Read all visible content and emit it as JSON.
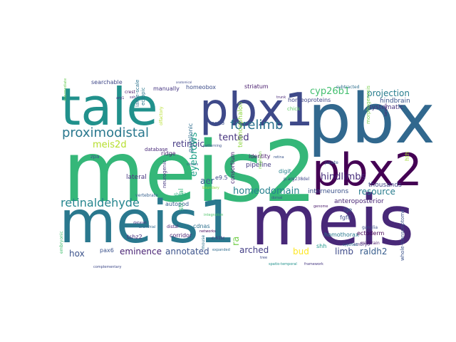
{
  "cloud": {
    "words": [
      {
        "text": "meis2",
        "color": "#35b779"
      },
      {
        "text": "pbx",
        "color": "#31688e"
      },
      {
        "text": "meis1",
        "color": "#2a788e"
      },
      {
        "text": "meis",
        "color": "#482878"
      },
      {
        "text": "tale",
        "color": "#21918c"
      },
      {
        "text": "pbx1",
        "color": "#3e4989"
      },
      {
        "text": "pbx2",
        "color": "#440154"
      },
      {
        "text": "proximodistal",
        "color": "#2a788e"
      },
      {
        "text": "forelimb",
        "color": "#2c728e"
      },
      {
        "text": "retinaldehyde",
        "color": "#25858e"
      },
      {
        "text": "homeodomain",
        "color": "#26828e"
      },
      {
        "text": "hindlimbs",
        "color": "#472d7b"
      },
      {
        "text": "eminence",
        "color": "#482173"
      },
      {
        "text": "annotated",
        "color": "#3b528b"
      },
      {
        "text": "arched",
        "color": "#433e85"
      },
      {
        "text": "limb",
        "color": "#3e4a89"
      },
      {
        "text": "raldh2",
        "color": "#365c8d"
      },
      {
        "text": "resource",
        "color": "#287c8e"
      },
      {
        "text": "projection",
        "color": "#287d8e"
      },
      {
        "text": "cyp26b1",
        "color": "#44bf70"
      },
      {
        "text": "hox",
        "color": "#3b528b"
      },
      {
        "text": "tented",
        "color": "#46337e"
      },
      {
        "text": "meis2d",
        "color": "#b5de2b"
      },
      {
        "text": "eyebrows",
        "color": "#1fa188"
      },
      {
        "text": "retinoic",
        "color": "#7ad151"
      },
      {
        "text": "aer",
        "color": "#365d8d"
      },
      {
        "text": "ra",
        "color": "#443983"
      },
      {
        "text": "bud",
        "color": "#fde725"
      },
      {
        "text": "lateral",
        "color": "#46327e"
      },
      {
        "text": "pipeline",
        "color": "#443a83"
      },
      {
        "text": "identity",
        "color": "#48186a"
      },
      {
        "text": "anteroposterior",
        "color": "#482575"
      },
      {
        "text": "interneurons",
        "color": "#3b528b"
      },
      {
        "text": "thousands",
        "color": "#414487"
      },
      {
        "text": "systematic",
        "color": "#46327e"
      },
      {
        "text": "hindbrain",
        "color": "#3a548c"
      },
      {
        "text": "homeoproteins",
        "color": "#404688"
      },
      {
        "text": "homeobox",
        "color": "#3d4d8a"
      },
      {
        "text": "striatum",
        "color": "#481b6d"
      },
      {
        "text": "ganglionic",
        "color": "#2e6e8e"
      },
      {
        "text": "searchable",
        "color": "#3f4788"
      },
      {
        "text": "manually",
        "color": "#453581"
      },
      {
        "text": "consortium",
        "color": "#482173"
      },
      {
        "text": "telencephalon",
        "color": "#90d743"
      },
      {
        "text": "ridge",
        "color": "#481f70"
      },
      {
        "text": "e9.5",
        "color": "#3f4889"
      },
      {
        "text": "autopod",
        "color": "#365c8d"
      },
      {
        "text": "corridor",
        "color": "#481f70"
      },
      {
        "text": "cdnas",
        "color": "#2d708e"
      },
      {
        "text": "tshz2",
        "color": "#472d7b"
      },
      {
        "text": "pax6",
        "color": "#3b528b"
      },
      {
        "text": "hth",
        "color": "#a5db36"
      },
      {
        "text": "homothorax",
        "color": "#2a788e"
      },
      {
        "text": "ectoderm",
        "color": "#440154"
      },
      {
        "text": "fgf8",
        "color": "#3e4c8a"
      },
      {
        "text": "lge",
        "color": "#375a8c"
      },
      {
        "text": "shh",
        "color": "#1f978b"
      },
      {
        "text": "digit",
        "color": "#26818e"
      },
      {
        "text": "subtracted",
        "color": "#2e6f8e"
      },
      {
        "text": "palate",
        "color": "#38598c"
      },
      {
        "text": "zpa",
        "color": "#3b528b"
      },
      {
        "text": "striatal",
        "color": "#35b779"
      },
      {
        "text": "meis3",
        "color": "#3c4f8a"
      },
      {
        "text": "database",
        "color": "#482979"
      },
      {
        "text": "neurogenic",
        "color": "#453781"
      },
      {
        "text": "vertebrate",
        "color": "#355f8d"
      },
      {
        "text": "mouse",
        "color": "#2c738e"
      },
      {
        "text": "crest",
        "color": "#481769"
      },
      {
        "text": "ganglia",
        "color": "#3d4e8a"
      },
      {
        "text": "embryo",
        "color": "#472c7a"
      },
      {
        "text": "midbrain",
        "color": "#48186a"
      },
      {
        "text": "whole-transcriptome",
        "color": "#3b528b"
      },
      {
        "text": "c.61tc",
        "color": "#46307e"
      },
      {
        "text": "branchial",
        "color": "#31688e"
      },
      {
        "text": "expanded",
        "color": "#2f6c8e"
      },
      {
        "text": "networks",
        "color": "#46085c"
      },
      {
        "text": "distal",
        "color": "#482475"
      },
      {
        "text": "nephron",
        "color": "#7ad151"
      },
      {
        "text": "shox2",
        "color": "#29af7f"
      },
      {
        "text": "integration",
        "color": "#50c46a"
      },
      {
        "text": "complementary",
        "color": "#3e4989"
      },
      {
        "text": "spatio-temporal",
        "color": "#21918c"
      },
      {
        "text": "framework",
        "color": "#453781"
      },
      {
        "text": "tree",
        "color": "#3e4989"
      },
      {
        "text": "genome",
        "color": "#48186a"
      },
      {
        "text": "p.arg238del",
        "color": "#3f4788"
      },
      {
        "text": "morphogenesis",
        "color": "#7ad151"
      },
      {
        "text": "large-scale",
        "color": "#2c728e"
      },
      {
        "text": "ectopic",
        "color": "#2a788e"
      },
      {
        "text": "arg1",
        "color": "#46307e"
      },
      {
        "text": "ssh",
        "color": "#472f7d"
      },
      {
        "text": "targets",
        "color": "#482878"
      },
      {
        "text": "clones",
        "color": "#3b528b"
      },
      {
        "text": "cyp26a1",
        "color": "#2d708e"
      },
      {
        "text": "trunk",
        "color": "#482677"
      },
      {
        "text": "dorsal",
        "color": "#3b528b"
      },
      {
        "text": "chick",
        "color": "#5ec962"
      },
      {
        "text": "olfactory",
        "color": "#b5de2b"
      },
      {
        "text": "anatomical",
        "color": "#3e4989"
      },
      {
        "text": "embryonic",
        "color": "#44bf70"
      },
      {
        "text": "patterning",
        "color": "#3b528b"
      },
      {
        "text": "boundary",
        "color": "#95d840"
      },
      {
        "text": "retina",
        "color": "#3a538b"
      },
      {
        "text": "intermediate",
        "color": "#6ece58"
      },
      {
        "text": "dataset",
        "color": "#453882"
      }
    ]
  }
}
